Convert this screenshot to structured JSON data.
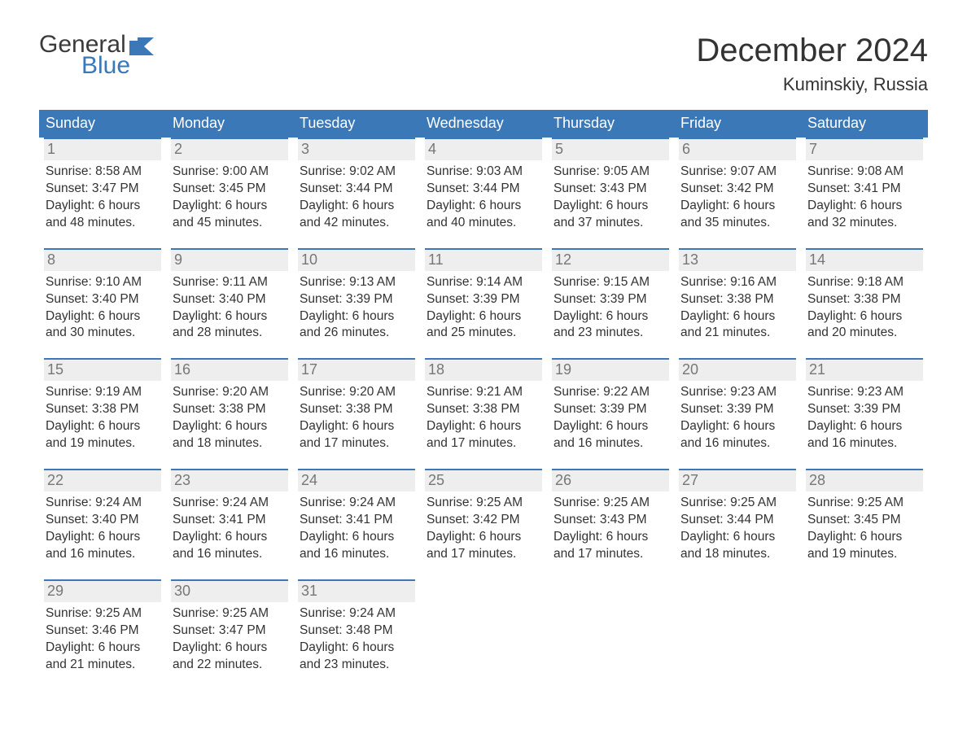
{
  "colors": {
    "brand_blue": "#3a78b7",
    "header_bg": "#3a78b7",
    "header_text": "#ffffff",
    "daynum_bg": "#eeeeee",
    "daynum_border_top": "#3a78b7",
    "daynum_text": "#777777",
    "body_text": "#333333",
    "page_bg": "#ffffff",
    "logo_gray": "#3b3b3b"
  },
  "typography": {
    "font_family": "Arial, Helvetica, sans-serif",
    "month_title_size": 40,
    "location_size": 22,
    "dow_size": 18,
    "daynum_size": 18,
    "body_size": 15.5
  },
  "logo": {
    "line1": "General",
    "line2": "Blue"
  },
  "title": "December 2024",
  "location": "Kuminskiy, Russia",
  "days_of_week": [
    "Sunday",
    "Monday",
    "Tuesday",
    "Wednesday",
    "Thursday",
    "Friday",
    "Saturday"
  ],
  "labels": {
    "sunrise": "Sunrise:",
    "sunset": "Sunset:",
    "daylight": "Daylight:"
  },
  "weeks": [
    [
      {
        "n": "1",
        "sunrise": "8:58 AM",
        "sunset": "3:47 PM",
        "daylight1": "6 hours",
        "daylight2": "and 48 minutes."
      },
      {
        "n": "2",
        "sunrise": "9:00 AM",
        "sunset": "3:45 PM",
        "daylight1": "6 hours",
        "daylight2": "and 45 minutes."
      },
      {
        "n": "3",
        "sunrise": "9:02 AM",
        "sunset": "3:44 PM",
        "daylight1": "6 hours",
        "daylight2": "and 42 minutes."
      },
      {
        "n": "4",
        "sunrise": "9:03 AM",
        "sunset": "3:44 PM",
        "daylight1": "6 hours",
        "daylight2": "and 40 minutes."
      },
      {
        "n": "5",
        "sunrise": "9:05 AM",
        "sunset": "3:43 PM",
        "daylight1": "6 hours",
        "daylight2": "and 37 minutes."
      },
      {
        "n": "6",
        "sunrise": "9:07 AM",
        "sunset": "3:42 PM",
        "daylight1": "6 hours",
        "daylight2": "and 35 minutes."
      },
      {
        "n": "7",
        "sunrise": "9:08 AM",
        "sunset": "3:41 PM",
        "daylight1": "6 hours",
        "daylight2": "and 32 minutes."
      }
    ],
    [
      {
        "n": "8",
        "sunrise": "9:10 AM",
        "sunset": "3:40 PM",
        "daylight1": "6 hours",
        "daylight2": "and 30 minutes."
      },
      {
        "n": "9",
        "sunrise": "9:11 AM",
        "sunset": "3:40 PM",
        "daylight1": "6 hours",
        "daylight2": "and 28 minutes."
      },
      {
        "n": "10",
        "sunrise": "9:13 AM",
        "sunset": "3:39 PM",
        "daylight1": "6 hours",
        "daylight2": "and 26 minutes."
      },
      {
        "n": "11",
        "sunrise": "9:14 AM",
        "sunset": "3:39 PM",
        "daylight1": "6 hours",
        "daylight2": "and 25 minutes."
      },
      {
        "n": "12",
        "sunrise": "9:15 AM",
        "sunset": "3:39 PM",
        "daylight1": "6 hours",
        "daylight2": "and 23 minutes."
      },
      {
        "n": "13",
        "sunrise": "9:16 AM",
        "sunset": "3:38 PM",
        "daylight1": "6 hours",
        "daylight2": "and 21 minutes."
      },
      {
        "n": "14",
        "sunrise": "9:18 AM",
        "sunset": "3:38 PM",
        "daylight1": "6 hours",
        "daylight2": "and 20 minutes."
      }
    ],
    [
      {
        "n": "15",
        "sunrise": "9:19 AM",
        "sunset": "3:38 PM",
        "daylight1": "6 hours",
        "daylight2": "and 19 minutes."
      },
      {
        "n": "16",
        "sunrise": "9:20 AM",
        "sunset": "3:38 PM",
        "daylight1": "6 hours",
        "daylight2": "and 18 minutes."
      },
      {
        "n": "17",
        "sunrise": "9:20 AM",
        "sunset": "3:38 PM",
        "daylight1": "6 hours",
        "daylight2": "and 17 minutes."
      },
      {
        "n": "18",
        "sunrise": "9:21 AM",
        "sunset": "3:38 PM",
        "daylight1": "6 hours",
        "daylight2": "and 17 minutes."
      },
      {
        "n": "19",
        "sunrise": "9:22 AM",
        "sunset": "3:39 PM",
        "daylight1": "6 hours",
        "daylight2": "and 16 minutes."
      },
      {
        "n": "20",
        "sunrise": "9:23 AM",
        "sunset": "3:39 PM",
        "daylight1": "6 hours",
        "daylight2": "and 16 minutes."
      },
      {
        "n": "21",
        "sunrise": "9:23 AM",
        "sunset": "3:39 PM",
        "daylight1": "6 hours",
        "daylight2": "and 16 minutes."
      }
    ],
    [
      {
        "n": "22",
        "sunrise": "9:24 AM",
        "sunset": "3:40 PM",
        "daylight1": "6 hours",
        "daylight2": "and 16 minutes."
      },
      {
        "n": "23",
        "sunrise": "9:24 AM",
        "sunset": "3:41 PM",
        "daylight1": "6 hours",
        "daylight2": "and 16 minutes."
      },
      {
        "n": "24",
        "sunrise": "9:24 AM",
        "sunset": "3:41 PM",
        "daylight1": "6 hours",
        "daylight2": "and 16 minutes."
      },
      {
        "n": "25",
        "sunrise": "9:25 AM",
        "sunset": "3:42 PM",
        "daylight1": "6 hours",
        "daylight2": "and 17 minutes."
      },
      {
        "n": "26",
        "sunrise": "9:25 AM",
        "sunset": "3:43 PM",
        "daylight1": "6 hours",
        "daylight2": "and 17 minutes."
      },
      {
        "n": "27",
        "sunrise": "9:25 AM",
        "sunset": "3:44 PM",
        "daylight1": "6 hours",
        "daylight2": "and 18 minutes."
      },
      {
        "n": "28",
        "sunrise": "9:25 AM",
        "sunset": "3:45 PM",
        "daylight1": "6 hours",
        "daylight2": "and 19 minutes."
      }
    ],
    [
      {
        "n": "29",
        "sunrise": "9:25 AM",
        "sunset": "3:46 PM",
        "daylight1": "6 hours",
        "daylight2": "and 21 minutes."
      },
      {
        "n": "30",
        "sunrise": "9:25 AM",
        "sunset": "3:47 PM",
        "daylight1": "6 hours",
        "daylight2": "and 22 minutes."
      },
      {
        "n": "31",
        "sunrise": "9:24 AM",
        "sunset": "3:48 PM",
        "daylight1": "6 hours",
        "daylight2": "and 23 minutes."
      },
      null,
      null,
      null,
      null
    ]
  ]
}
